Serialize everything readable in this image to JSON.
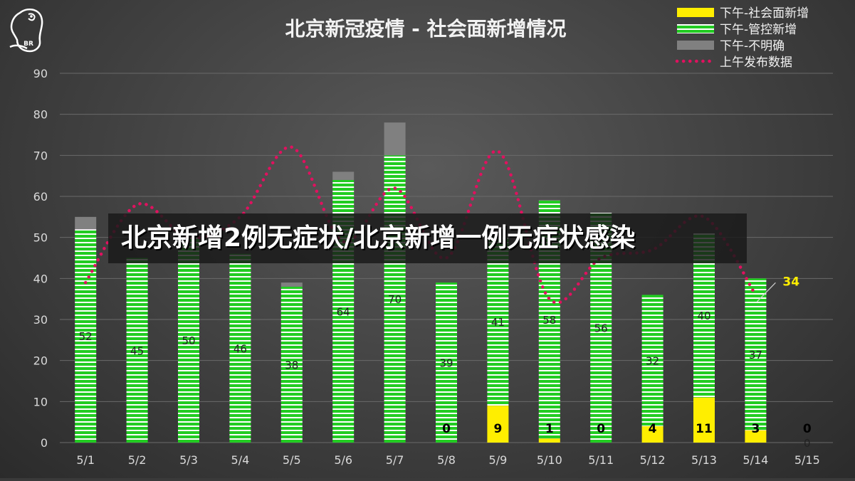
{
  "chart_data": {
    "type": "bar",
    "stacked": true,
    "title": "北京新冠疫情 - 社会面新增情况",
    "categories": [
      "5/1",
      "5/2",
      "5/3",
      "5/4",
      "5/5",
      "5/6",
      "5/7",
      "5/8",
      "5/9",
      "5/10",
      "5/11",
      "5/12",
      "5/13",
      "5/14",
      "5/15"
    ],
    "ylim": [
      0,
      90
    ],
    "yticks": [
      0,
      10,
      20,
      30,
      40,
      50,
      60,
      70,
      80,
      90
    ],
    "grid": true,
    "legend_position": "top-right",
    "series": [
      {
        "name": "下午-社会面新增",
        "type": "bar",
        "color": "#ffee00",
        "values": [
          0,
          0,
          0,
          0,
          0,
          0,
          0,
          0,
          9,
          1,
          0,
          4,
          11,
          3,
          0
        ],
        "labels": [
          "",
          "",
          "",
          "",
          "",
          "",
          "",
          "0",
          "9",
          "1",
          "0",
          "4",
          "11",
          "3",
          "0"
        ]
      },
      {
        "name": "下午-管控新增",
        "type": "bar",
        "color": "#22cc22",
        "values": [
          52,
          45,
          50,
          46,
          38,
          64,
          70,
          39,
          41,
          58,
          56,
          32,
          40,
          37,
          0
        ],
        "labels": [
          "52",
          "45",
          "50",
          "46",
          "38",
          "64",
          "70",
          "39",
          "41",
          "58",
          "56",
          "32",
          "40",
          "37",
          "0"
        ]
      },
      {
        "name": "下午-不明确",
        "type": "bar",
        "color": "#808080",
        "values": [
          3,
          0,
          0,
          0,
          1,
          2,
          8,
          0,
          0,
          0,
          0,
          0,
          0,
          0,
          0
        ]
      },
      {
        "name": "上午发布数据",
        "type": "line",
        "color": "#e0115f",
        "values": [
          39,
          58,
          50,
          55,
          72,
          49,
          62,
          45,
          71,
          35,
          45,
          47,
          55,
          36,
          null
        ]
      }
    ],
    "annotations": [
      {
        "category": "5/14",
        "text": "34",
        "color": "#ffee00"
      }
    ]
  },
  "banner": {
    "text": "北京新增2例无症状/北京新增一例无症状感染"
  },
  "logo": {
    "text": "BR",
    "icon": "parrot-icon"
  }
}
